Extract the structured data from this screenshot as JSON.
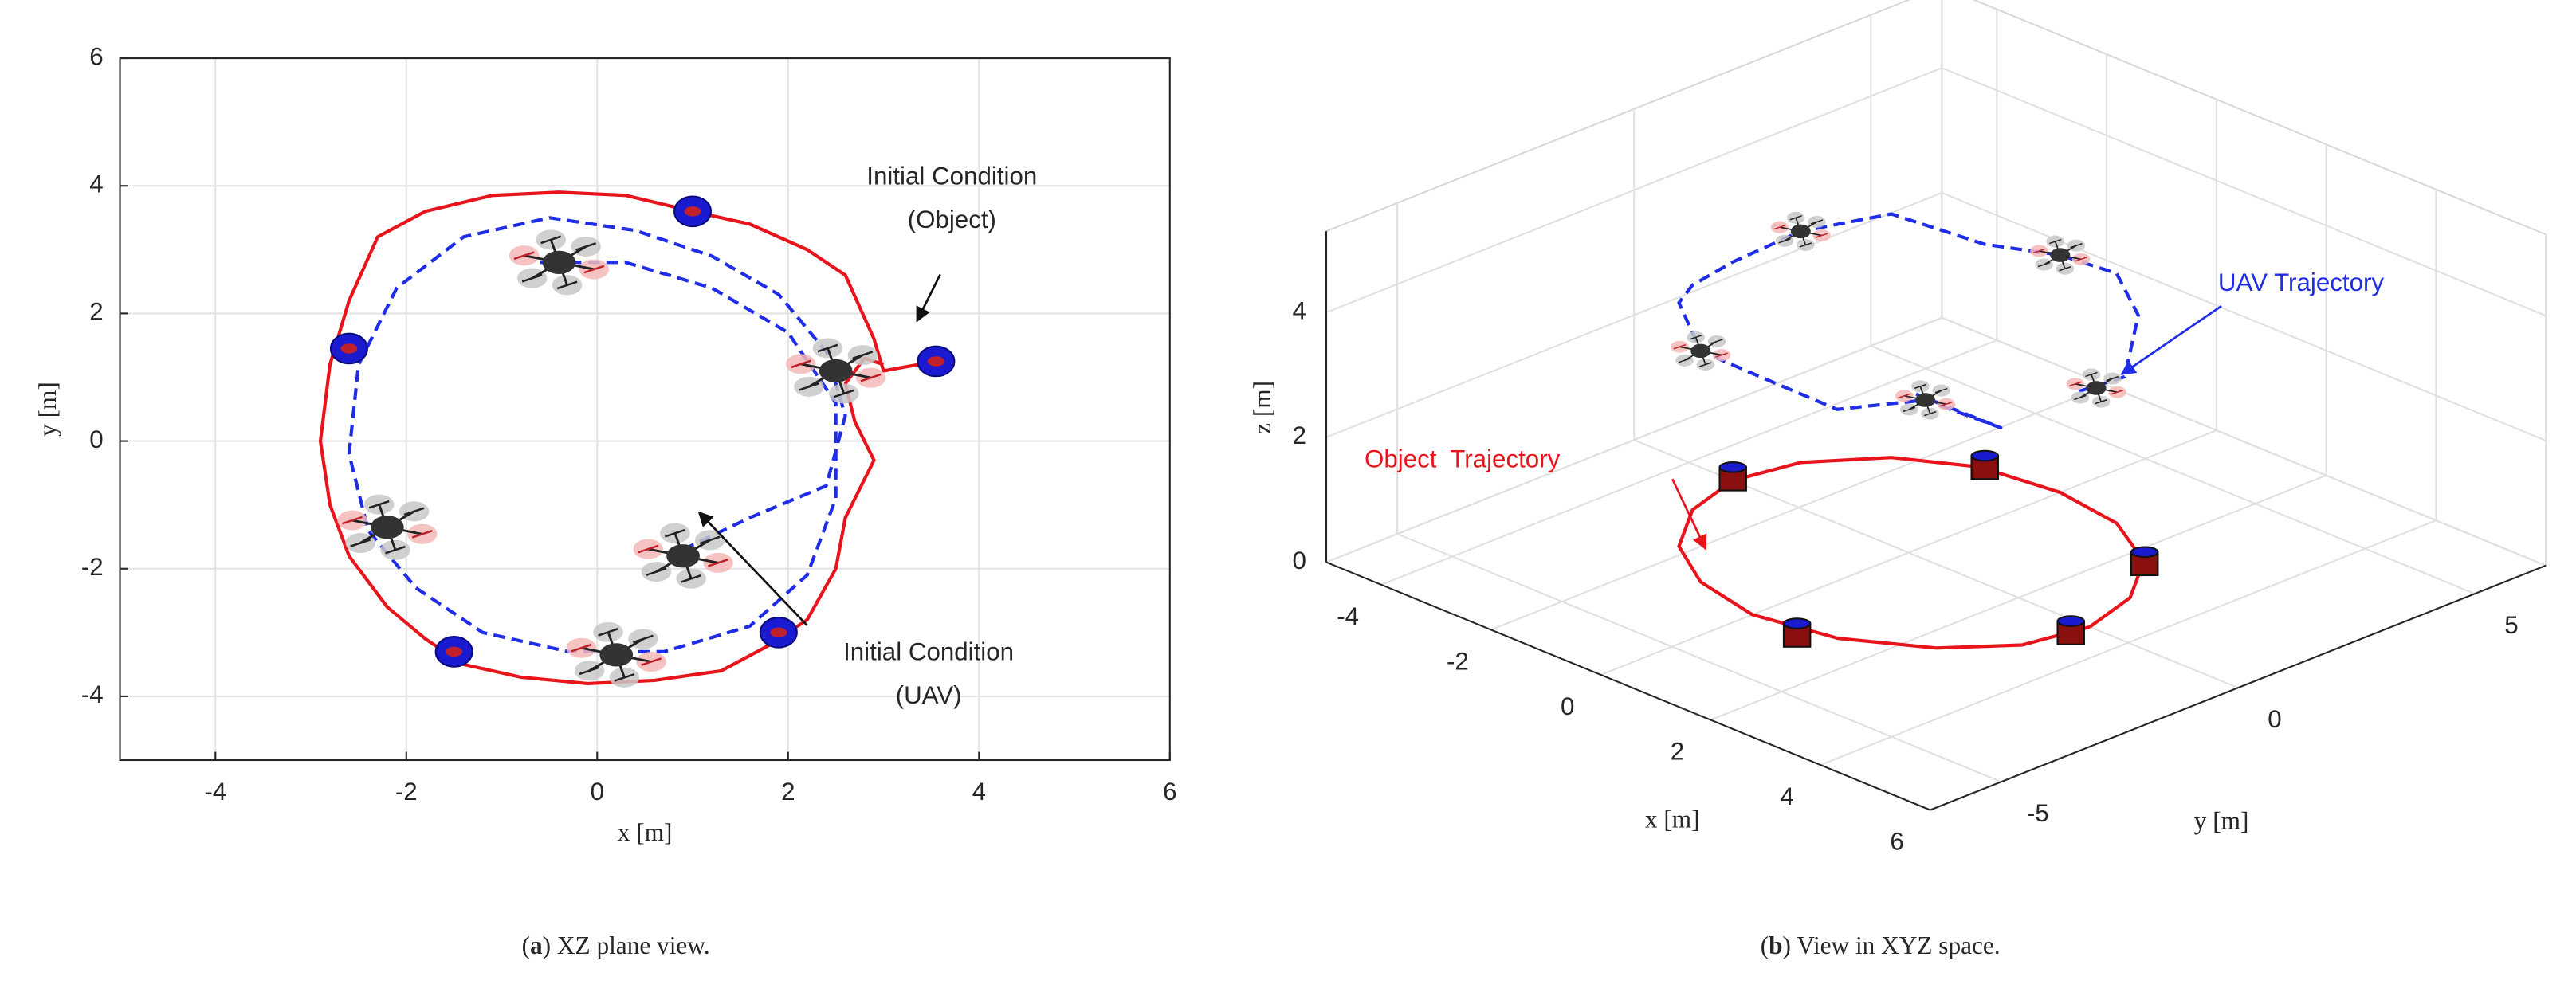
{
  "chart_data": [
    {
      "type": "line",
      "xlabel": "x [m]",
      "ylabel": "y [m]",
      "xlim": [
        -5,
        6
      ],
      "ylim": [
        -5,
        6
      ],
      "xticks": [
        -4,
        -2,
        0,
        2,
        4,
        6
      ],
      "yticks": [
        -4,
        -2,
        0,
        2,
        4,
        6
      ],
      "grid": true,
      "series": [
        {
          "color": "#e8141c",
          "style": "solid",
          "x": [
            3.55,
            3.0,
            2.9,
            2.6,
            2.2,
            1.6,
            1.0,
            0.3,
            -0.4,
            -1.1,
            -1.8,
            -2.3,
            -2.6,
            -2.8,
            -2.9,
            -2.8,
            -2.6,
            -2.2,
            -1.8,
            -1.4,
            -0.8,
            -0.1,
            0.6,
            1.3,
            1.8,
            2.2,
            2.5,
            2.6,
            2.9,
            2.7,
            2.6,
            2.8,
            3.0
          ],
          "values": [
            1.25,
            1.1,
            1.6,
            2.6,
            3.0,
            3.4,
            3.6,
            3.85,
            3.9,
            3.85,
            3.6,
            3.2,
            2.2,
            1.2,
            0,
            -1.0,
            -1.8,
            -2.6,
            -3.1,
            -3.5,
            -3.7,
            -3.8,
            -3.75,
            -3.6,
            -3.2,
            -2.8,
            -2.0,
            -1.2,
            -0.3,
            0.3,
            0.9,
            1.3,
            1.2
          ]
        },
        {
          "color": "#1f2ee6",
          "style": "dashed",
          "x": [
            0.9,
            1.6,
            2.4,
            2.6,
            2.4,
            1.9,
            1.2,
            0.4,
            -0.5,
            -1.4,
            -2.1,
            -2.5,
            -2.6,
            -2.4,
            -1.9,
            -1.2,
            -0.3,
            0.7,
            1.6,
            2.2,
            2.5,
            2.5,
            2.0,
            1.2,
            0.3,
            -0.6
          ],
          "values": [
            -1.7,
            -1.2,
            -0.7,
            0.4,
            1.4,
            2.3,
            2.9,
            3.3,
            3.5,
            3.2,
            2.4,
            1.2,
            -0.2,
            -1.4,
            -2.3,
            -3.0,
            -3.3,
            -3.3,
            -2.9,
            -2.1,
            -0.9,
            0.6,
            1.7,
            2.4,
            2.8,
            2.8
          ]
        }
      ],
      "uav_markers": {
        "x": [
          -0.4,
          2.5,
          -2.2,
          0.9,
          0.2
        ],
        "y": [
          2.8,
          1.1,
          -1.35,
          -1.8,
          -3.35
        ]
      },
      "object_markers": {
        "x": [
          1.0,
          -2.6,
          3.55,
          1.9,
          -1.5
        ],
        "y": [
          3.6,
          1.45,
          1.25,
          -3.0,
          -3.3
        ]
      },
      "annotations": [
        [
          "Initial Condition",
          "(Object)"
        ],
        [
          "Initial Condition",
          "(UAV)"
        ]
      ],
      "caption": [
        "(",
        "a",
        ") XZ plane view."
      ]
    },
    {
      "type": "line3d",
      "xlabel": "x [m]",
      "ylabel": "y [m]",
      "zlabel": "z [m]",
      "xlim": [
        -5,
        6
      ],
      "ylim": [
        -6.5,
        6.5
      ],
      "zlim": [
        0,
        5.3
      ],
      "xticks": [
        -4,
        -2,
        0,
        2,
        4,
        6
      ],
      "yticks": [
        -5,
        0,
        5
      ],
      "zticks": [
        0,
        2,
        4
      ],
      "grid": true,
      "series": [
        {
          "color": "#e8141c",
          "style": "solid",
          "x": [
            3.3,
            3.0,
            2.3,
            1.2,
            0,
            -1.3,
            -2.3,
            -3.0,
            -3.2,
            -2.9,
            -2.2,
            -1.2,
            0,
            1.3,
            2.4,
            3.1,
            3.3
          ],
          "y": [
            0,
            1.2,
            2.3,
            3.0,
            3.2,
            3.0,
            2.3,
            1.2,
            0,
            -1.2,
            -2.3,
            -3.0,
            -3.3,
            -3.0,
            -2.2,
            -1.2,
            0
          ],
          "z": [
            0,
            0,
            0,
            0,
            0,
            0,
            0,
            0,
            0,
            0,
            0,
            0,
            0,
            0,
            0,
            0,
            0
          ]
        },
        {
          "color": "#1f2ee6",
          "style": "dashed",
          "x": [
            3.1,
            2.9,
            2.2,
            1.2,
            0,
            -1.2,
            -2.3,
            -3.0,
            -3.2,
            -2.9,
            -2.2,
            -1.2,
            0,
            1.2,
            2.2,
            2.8,
            1.0
          ],
          "y": [
            0,
            1.2,
            2.3,
            3.0,
            3.2,
            3.0,
            2.3,
            1.2,
            0,
            -1.2,
            -2.3,
            -3.0,
            -3.2,
            -2.9,
            -2.2,
            -1.3,
            -1.0
          ],
          "z": [
            3.7,
            3.5,
            3.9,
            4.0,
            3.8,
            3.6,
            3.9,
            3.7,
            3.5,
            3.6,
            3.9,
            3.7,
            3.8,
            3.6,
            3.9,
            3.4,
            3.2
          ]
        }
      ],
      "uav_markers": {
        "x": [
          -3.0,
          0,
          2.2,
          2.9,
          -1.2
        ],
        "y": [
          1.2,
          3.2,
          -2.2,
          0.6,
          -3.0
        ],
        "z": [
          3.7,
          3.8,
          3.9,
          3.5,
          3.7
        ]
      },
      "object_markers": {
        "x": [
          -3.2,
          -1.2,
          2.4,
          3.3,
          0.9
        ],
        "y": [
          0,
          3.0,
          2.2,
          -0.4,
          -3.4
        ],
        "z": [
          0,
          0,
          0,
          0,
          0
        ]
      },
      "annotations": [
        "UAV Trajectory",
        "Object  Trajectory"
      ],
      "caption": [
        "(",
        "b",
        ") View in XYZ space."
      ]
    }
  ]
}
